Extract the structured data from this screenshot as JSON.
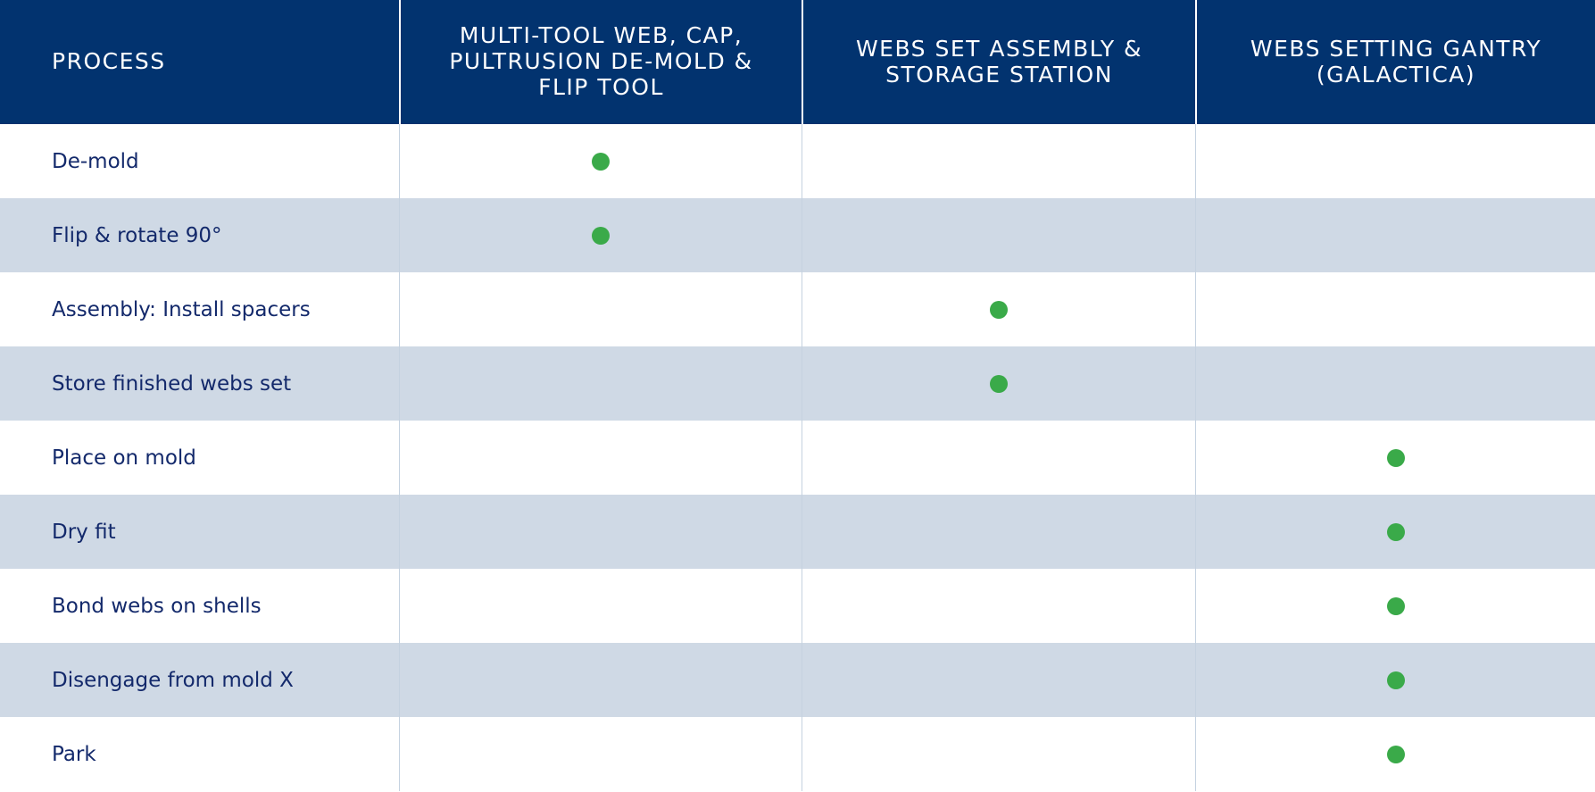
{
  "table": {
    "header": [
      "PROCESS",
      "MULTI-TOOL WEB, CAP, PULTRUSION DE-MOLD & FLIP TOOL",
      "WEBS SET ASSEMBLY & STORAGE STATION",
      "WEBS SETTING GANTRY (GALACTICA)"
    ],
    "rows": [
      {
        "process": "De-mold",
        "marks": [
          true,
          false,
          false
        ]
      },
      {
        "process": "Flip & rotate 90°",
        "marks": [
          true,
          false,
          false
        ]
      },
      {
        "process": "Assembly: Install spacers",
        "marks": [
          false,
          true,
          false
        ]
      },
      {
        "process": "Store finished webs set",
        "marks": [
          false,
          true,
          false
        ]
      },
      {
        "process": "Place on mold",
        "marks": [
          false,
          false,
          true
        ]
      },
      {
        "process": "Dry fit",
        "marks": [
          false,
          false,
          true
        ]
      },
      {
        "process": "Bond webs on shells",
        "marks": [
          false,
          false,
          true
        ]
      },
      {
        "process": "Disengage from mold X",
        "marks": [
          false,
          false,
          true
        ]
      },
      {
        "process": "Park",
        "marks": [
          false,
          false,
          true
        ]
      }
    ]
  }
}
